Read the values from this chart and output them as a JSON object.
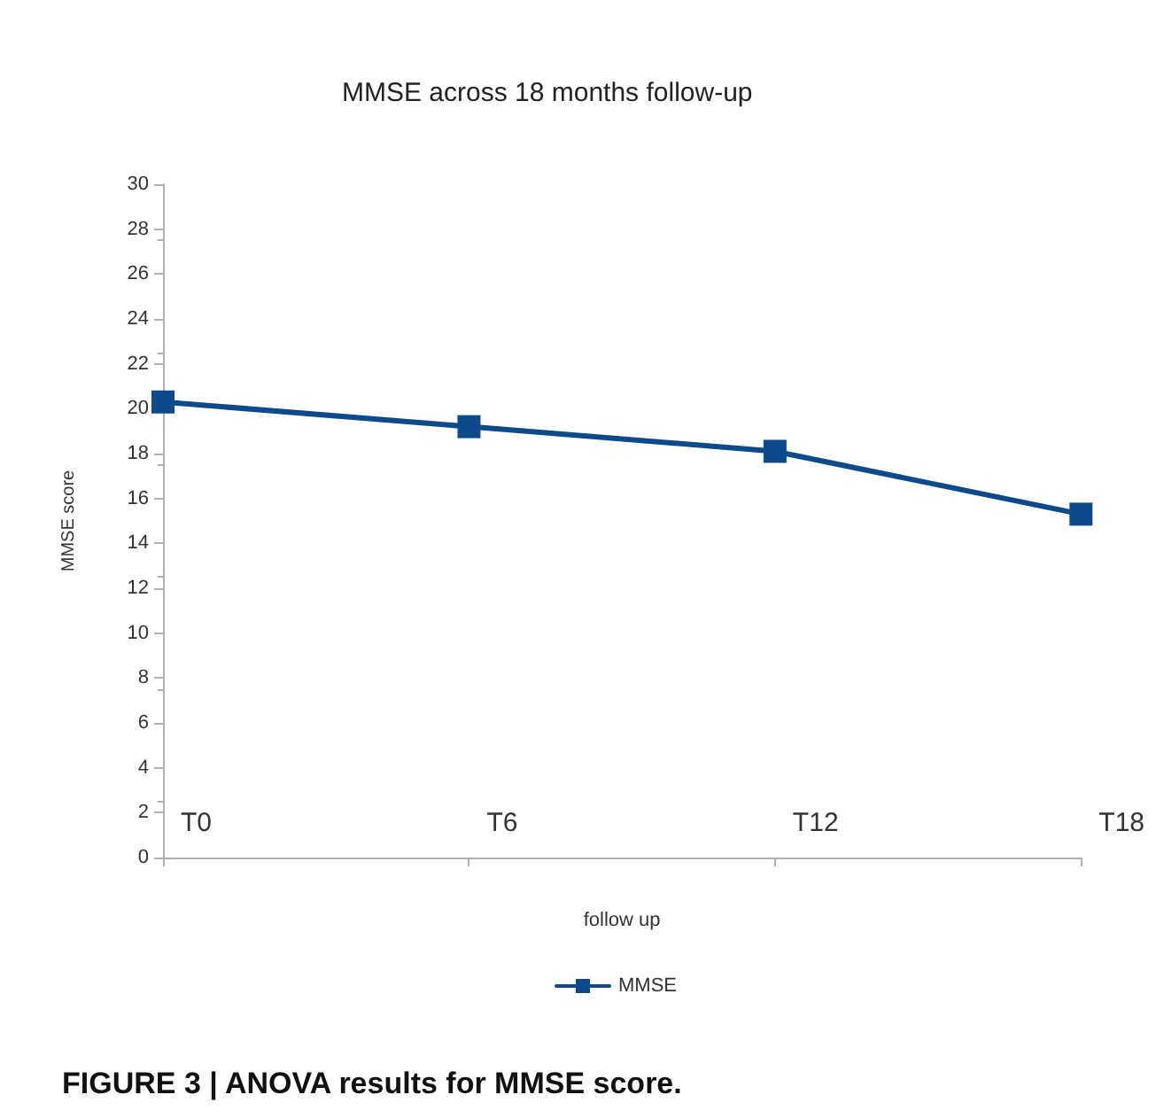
{
  "chart_data": {
    "type": "line",
    "title": "MMSE across 18 months follow-up",
    "xlabel": "follow up",
    "ylabel": "MMSE score",
    "categories": [
      "T0",
      "T6",
      "T12",
      "T18"
    ],
    "series": [
      {
        "name": "MMSE",
        "color": "#0c4a8c",
        "values": [
          20.3,
          19.2,
          18.1,
          15.3
        ]
      }
    ],
    "ylim": [
      0,
      30
    ],
    "yticks": [
      0,
      2,
      4,
      6,
      8,
      10,
      12,
      14,
      16,
      18,
      20,
      22,
      24,
      26,
      28,
      30
    ],
    "grid": false,
    "legend": "bottom",
    "marker": "square",
    "line_style": "solid",
    "annotations": [
      "FIGURE 3 | ANOVA results for MMSE score."
    ]
  }
}
